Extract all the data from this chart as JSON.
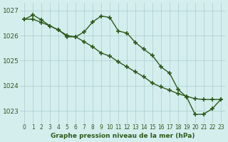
{
  "line1_x": [
    0,
    1,
    2,
    3,
    4,
    5,
    6,
    7,
    8,
    9,
    10,
    11,
    12,
    13,
    14,
    15,
    16,
    17,
    18,
    19,
    20,
    21,
    22,
    23
  ],
  "line1_y": [
    1026.65,
    1026.82,
    1026.62,
    1026.38,
    1026.22,
    1025.95,
    1025.95,
    1026.15,
    1026.55,
    1026.78,
    1026.72,
    1026.18,
    1026.1,
    1025.72,
    1025.45,
    1025.2,
    1024.75,
    1024.5,
    1023.85,
    1023.55,
    1022.85,
    1022.87,
    1023.08,
    1023.45
  ],
  "line2_x": [
    0,
    1,
    2,
    3,
    4,
    5,
    6,
    7,
    8,
    9,
    10,
    11,
    12,
    13,
    14,
    15,
    16,
    17,
    18,
    19,
    20,
    21,
    22,
    23
  ],
  "line2_y": [
    1026.65,
    1026.65,
    1026.52,
    1026.38,
    1026.22,
    1026.0,
    1025.95,
    1025.75,
    1025.55,
    1025.3,
    1025.18,
    1024.95,
    1024.75,
    1024.55,
    1024.35,
    1024.1,
    1023.95,
    1023.82,
    1023.68,
    1023.58,
    1023.48,
    1023.45,
    1023.45,
    1023.45
  ],
  "line_color": "#2d5a1b",
  "bg_color": "#d4eeee",
  "grid_color": "#a8cccc",
  "xlabel": "Graphe pression niveau de la mer (hPa)",
  "ylim": [
    1022.5,
    1027.3
  ],
  "xlim": [
    -0.5,
    23.5
  ],
  "yticks": [
    1023,
    1024,
    1025,
    1026,
    1027
  ],
  "xticks": [
    0,
    1,
    2,
    3,
    4,
    5,
    6,
    7,
    8,
    9,
    10,
    11,
    12,
    13,
    14,
    15,
    16,
    17,
    18,
    19,
    20,
    21,
    22,
    23
  ],
  "marker": "+",
  "markersize": 4.5,
  "linewidth": 1.0
}
